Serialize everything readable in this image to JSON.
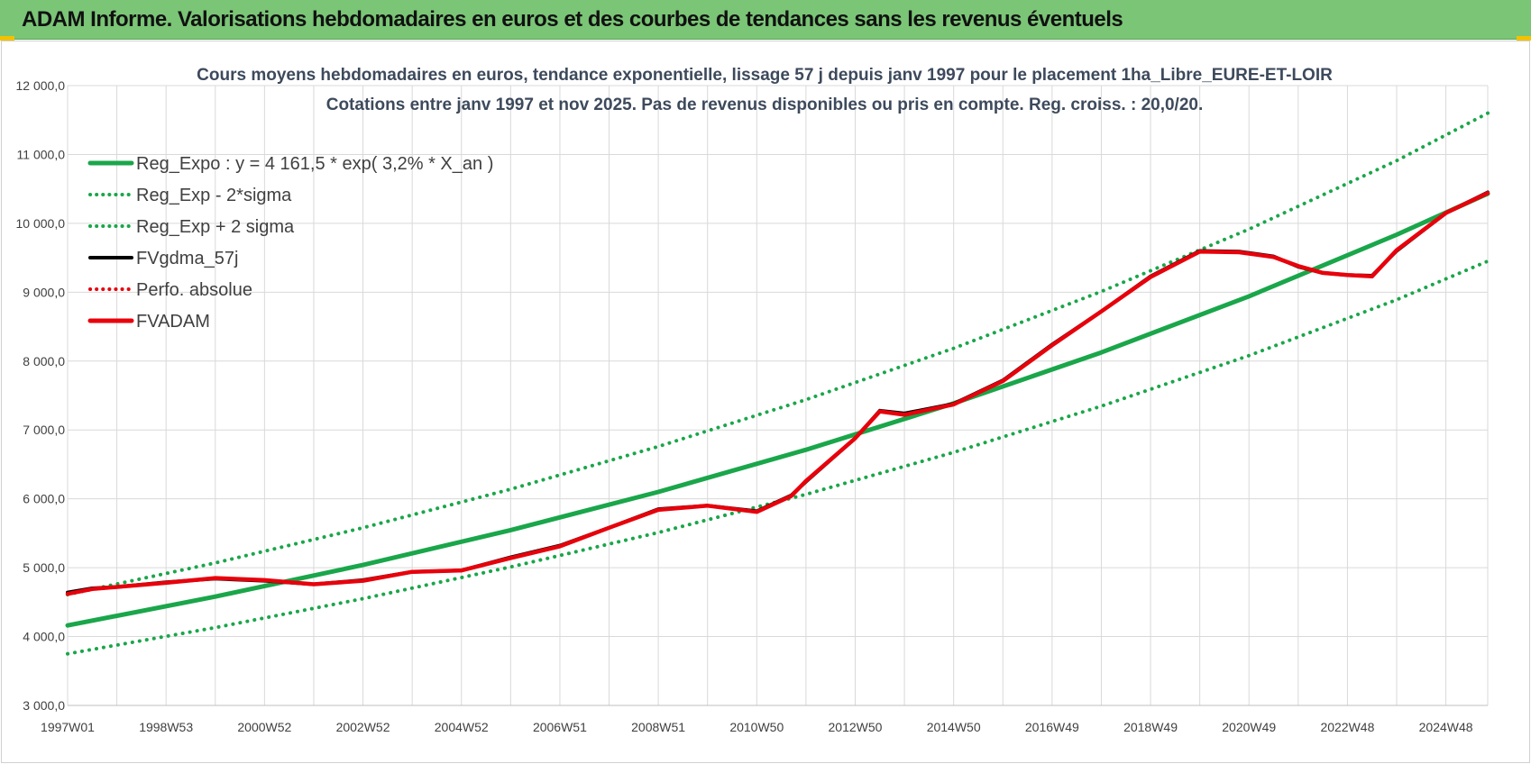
{
  "header": {
    "title": "ADAM Informe. Valorisations hebdomadaires en euros et des courbes de tendances sans les revenus éventuels"
  },
  "colors": {
    "header_bg": "#7ac576",
    "green": "#1aa64a",
    "red": "#e8000b",
    "black": "#000000"
  },
  "chart_data": {
    "type": "line",
    "title": "Cours moyens hebdomadaires en euros, tendance exponentielle, lissage 57 j depuis janv 1997  pour le placement 1ha_Libre_EURE-ET-LOIR",
    "subtitle": "Cotations entre janv 1997 et nov 2025. Pas de revenus disponibles ou pris en compte. Reg. croiss. : 20,0/20.",
    "xlabel": "",
    "ylabel": "",
    "ylim": [
      3000,
      12000
    ],
    "y_ticks": [
      3000,
      4000,
      5000,
      6000,
      7000,
      8000,
      9000,
      10000,
      11000,
      12000
    ],
    "y_tick_labels": [
      "3 000,0",
      "4 000,0",
      "5 000,0",
      "6 000,0",
      "7 000,0",
      "8 000,0",
      "9 000,0",
      "10 000,0",
      "11 000,0",
      "12 000,0"
    ],
    "xlim": [
      1997.0,
      2025.85
    ],
    "x_tick_labels": [
      "1997W01",
      "1998W53",
      "2000W52",
      "2002W52",
      "2004W52",
      "2006W51",
      "2008W51",
      "2010W50",
      "2012W50",
      "2014W50",
      "2016W49",
      "2018W49",
      "2020W49",
      "2022W48",
      "2024W48"
    ],
    "x_tick_positions": [
      1997.0,
      1999.0,
      2001.0,
      2003.0,
      2005.0,
      2007.0,
      2009.0,
      2011.0,
      2013.0,
      2015.0,
      2017.0,
      2019.0,
      2021.0,
      2023.0,
      2025.0
    ],
    "grid": true,
    "legend_position": "top-left",
    "series": [
      {
        "name": "Reg_Expo : y = 4 161,5 * exp( 3,2% *  X_an )",
        "style": "solid",
        "color": "#1aa64a",
        "x": [
          1997.0,
          2000.0,
          2003.0,
          2006.0,
          2009.0,
          2012.0,
          2015.0,
          2018.0,
          2021.0,
          2024.0,
          2025.85
        ],
        "y": [
          4161,
          4580,
          5040,
          5545,
          6100,
          6712,
          7385,
          8125,
          8940,
          9835,
          10430
        ]
      },
      {
        "name": "Reg_Exp - 2*sigma",
        "style": "dotted",
        "color": "#1aa64a",
        "x": [
          1997.0,
          2000.0,
          2003.0,
          2006.0,
          2009.0,
          2012.0,
          2015.0,
          2018.0,
          2021.0,
          2024.0,
          2025.85
        ],
        "y": [
          3750,
          4130,
          4550,
          5010,
          5510,
          6065,
          6675,
          7345,
          8080,
          8890,
          9450
        ]
      },
      {
        "name": "Reg_Exp + 2 sigma",
        "style": "dotted",
        "color": "#1aa64a",
        "x": [
          1997.0,
          2000.0,
          2003.0,
          2006.0,
          2009.0,
          2012.0,
          2015.0,
          2018.0,
          2021.0,
          2024.0,
          2025.85
        ],
        "y": [
          4610,
          5070,
          5580,
          6140,
          6760,
          7440,
          8185,
          9010,
          9915,
          10910,
          11600
        ]
      },
      {
        "name": "FVgdma_57j",
        "style": "solid",
        "color": "#000000",
        "x": [
          1997.0,
          1997.5,
          1998.0,
          1999.0,
          2000.0,
          2001.0,
          2002.0,
          2003.0,
          2004.0,
          2005.0,
          2006.0,
          2007.0,
          2008.0,
          2009.0,
          2010.0,
          2011.0,
          2011.7,
          2012.0,
          2013.0,
          2013.5,
          2014.0,
          2015.0,
          2016.0,
          2017.0,
          2018.0,
          2019.0,
          2020.0,
          2020.8,
          2021.5,
          2022.0,
          2022.5,
          2023.0,
          2023.5,
          2024.0,
          2025.0,
          2025.85
        ],
        "y": [
          4640,
          4700,
          4720,
          4790,
          4840,
          4810,
          4760,
          4820,
          4940,
          4960,
          5150,
          5320,
          5580,
          5850,
          5900,
          5820,
          6050,
          6250,
          6880,
          7280,
          7240,
          7380,
          7720,
          8240,
          8720,
          9230,
          9600,
          9590,
          9520,
          9370,
          9280,
          9250,
          9240,
          9600,
          10150,
          10450
        ]
      },
      {
        "name": "Perfo. absolue",
        "style": "dotted",
        "color": "#e8000b",
        "x": [],
        "y": []
      },
      {
        "name": "FVADAM",
        "style": "solid",
        "color": "#e8000b",
        "x": [
          1997.0,
          1997.5,
          1998.0,
          1999.0,
          2000.0,
          2001.0,
          2002.0,
          2003.0,
          2004.0,
          2005.0,
          2006.0,
          2007.0,
          2008.0,
          2009.0,
          2010.0,
          2011.0,
          2011.7,
          2012.0,
          2013.0,
          2013.5,
          2014.0,
          2015.0,
          2016.0,
          2017.0,
          2018.0,
          2019.0,
          2020.0,
          2020.8,
          2021.5,
          2022.0,
          2022.5,
          2023.0,
          2023.5,
          2024.0,
          2025.0,
          2025.85
        ],
        "y": [
          4620,
          4690,
          4720,
          4780,
          4850,
          4820,
          4760,
          4810,
          4940,
          4960,
          5140,
          5310,
          5580,
          5840,
          5900,
          5810,
          6040,
          6260,
          6880,
          7270,
          7220,
          7370,
          7710,
          8230,
          8720,
          9220,
          9590,
          9580,
          9510,
          9380,
          9280,
          9250,
          9230,
          9610,
          10150,
          10440
        ]
      }
    ]
  }
}
